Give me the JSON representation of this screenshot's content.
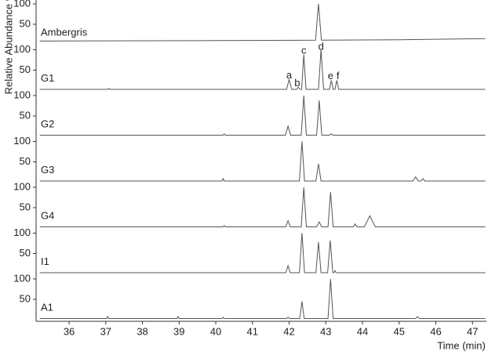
{
  "chart_data": [
    {
      "type": "line",
      "label": "Ambergris",
      "ylabel": "Relative Abundance %",
      "xlim": [
        35.1,
        47.38
      ],
      "ylim": [
        0,
        108
      ],
      "yticks": [
        50,
        100
      ],
      "color": "#555555",
      "x": [
        35.2,
        40,
        42.72,
        42.8,
        42.88,
        45,
        47.35
      ],
      "values": [
        9,
        10,
        11,
        100,
        11,
        12,
        15
      ]
    },
    {
      "type": "line",
      "label": "G1",
      "xlim": [
        35.1,
        47.38
      ],
      "ylim": [
        0,
        108
      ],
      "yticks": [
        50,
        100
      ],
      "color": "#555555",
      "x": [
        35.2,
        37.05,
        37.08,
        37.11,
        40.5,
        41.93,
        42.0,
        42.07,
        42.2,
        42.25,
        42.3,
        42.34,
        42.4,
        42.46,
        42.8,
        42.87,
        42.94,
        43.1,
        43.15,
        43.2,
        43.25,
        43.3,
        43.35,
        44.5,
        47.35
      ],
      "values": [
        3,
        3,
        5,
        3,
        3,
        3,
        27,
        3,
        3,
        8,
        3,
        3,
        88,
        3,
        3,
        100,
        3,
        3,
        25,
        3,
        3,
        25,
        3,
        3,
        3
      ],
      "annotations": [
        {
          "text": "a",
          "x": 42.0,
          "y": 36
        },
        {
          "text": "b",
          "x": 42.22,
          "y": 17
        },
        {
          "text": "c",
          "x": 42.4,
          "y": 97
        },
        {
          "text": "d",
          "x": 42.87,
          "y": 107
        },
        {
          "text": "e",
          "x": 43.13,
          "y": 34
        },
        {
          "text": "f",
          "x": 43.33,
          "y": 34
        }
      ]
    },
    {
      "type": "line",
      "label": "G2",
      "xlim": [
        35.1,
        47.38
      ],
      "ylim": [
        0,
        108
      ],
      "yticks": [
        50,
        100
      ],
      "color": "#555555",
      "x": [
        35.2,
        40.2,
        40.23,
        40.26,
        41.9,
        41.97,
        42.04,
        42.33,
        42.4,
        42.47,
        42.75,
        42.82,
        42.89,
        43.1,
        43.15,
        43.2,
        47.35
      ],
      "values": [
        3,
        3,
        6,
        3,
        3,
        25,
        3,
        3,
        100,
        3,
        3,
        88,
        3,
        3,
        6,
        3,
        3
      ]
    },
    {
      "type": "line",
      "label": "G3",
      "xlim": [
        35.1,
        47.38
      ],
      "ylim": [
        0,
        108
      ],
      "yticks": [
        50,
        100
      ],
      "color": "#555555",
      "x": [
        35.2,
        40.17,
        40.2,
        40.23,
        42.28,
        42.35,
        42.42,
        42.73,
        42.8,
        42.87,
        45.38,
        45.45,
        45.52,
        45.6,
        45.65,
        45.7,
        47.35
      ],
      "values": [
        3,
        3,
        9,
        3,
        3,
        100,
        3,
        3,
        45,
        3,
        3,
        13,
        3,
        3,
        9,
        3,
        3
      ]
    },
    {
      "type": "line",
      "label": "G4",
      "xlim": [
        35.1,
        47.38
      ],
      "ylim": [
        0,
        108
      ],
      "yticks": [
        50,
        100
      ],
      "color": "#555555",
      "x": [
        35.2,
        40.2,
        40.23,
        40.26,
        41.91,
        41.97,
        42.03,
        42.33,
        42.4,
        42.47,
        42.75,
        42.82,
        42.89,
        43.06,
        43.13,
        43.2,
        43.75,
        43.8,
        43.85,
        44.05,
        44.2,
        44.35,
        47.35
      ],
      "values": [
        3,
        3,
        6,
        3,
        3,
        18,
        3,
        3,
        100,
        3,
        3,
        15,
        3,
        3,
        88,
        3,
        3,
        10,
        3,
        3,
        30,
        3,
        3
      ]
    },
    {
      "type": "line",
      "label": "I1",
      "xlim": [
        35.1,
        47.38
      ],
      "ylim": [
        0,
        108
      ],
      "yticks": [
        50,
        100
      ],
      "color": "#555555",
      "x": [
        35.2,
        41.91,
        41.97,
        42.03,
        42.28,
        42.35,
        42.42,
        42.73,
        42.8,
        42.87,
        43.05,
        43.12,
        43.19,
        43.22,
        43.25,
        43.28,
        47.35
      ],
      "values": [
        3,
        3,
        20,
        3,
        3,
        100,
        3,
        3,
        78,
        3,
        3,
        82,
        3,
        3,
        8,
        3,
        3
      ]
    },
    {
      "type": "line",
      "label": "A1",
      "xlim": [
        35.1,
        47.38
      ],
      "ylim": [
        0,
        108
      ],
      "yticks": [
        50,
        100
      ],
      "color": "#555555",
      "xticks": [
        36,
        37,
        38,
        39,
        40,
        41,
        42,
        43,
        44,
        45,
        46,
        47
      ],
      "xlabel": "Time (min)",
      "x": [
        35.2,
        37.02,
        37.05,
        37.08,
        38.94,
        38.97,
        39.0,
        40.17,
        40.2,
        40.23,
        41.93,
        41.97,
        42.01,
        42.29,
        42.35,
        42.41,
        43.06,
        43.13,
        43.2,
        45.45,
        45.5,
        45.55,
        47.35
      ],
      "values": [
        3,
        3,
        8,
        3,
        3,
        8,
        3,
        3,
        6,
        3,
        3,
        6,
        3,
        3,
        45,
        3,
        3,
        100,
        3,
        3,
        8,
        3,
        3
      ]
    }
  ]
}
